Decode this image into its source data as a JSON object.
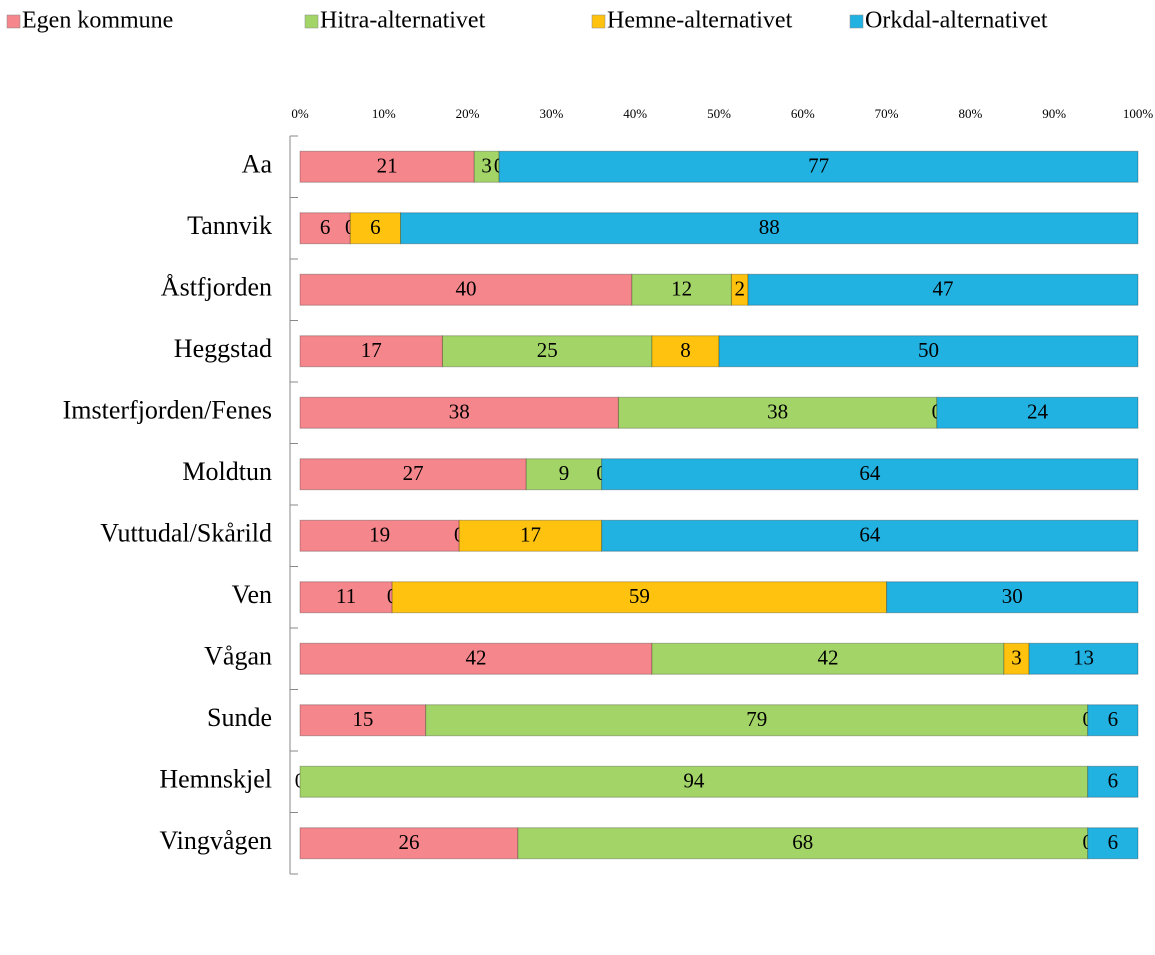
{
  "chart_data": {
    "type": "stacked-bar-100",
    "orientation": "horizontal",
    "categories": [
      "Aa",
      "Tannvik",
      "Åstfjorden",
      "Heggstad",
      "Imsterfjorden/Fenes",
      "Moldtun",
      "Vuttudal/Skårild",
      "Ven",
      "Vågan",
      "Sunde",
      "Hemnskjel",
      "Vingvågen"
    ],
    "series": [
      {
        "name": "Egen kommune",
        "color": "#f4868c",
        "values": [
          21,
          6,
          40,
          17,
          38,
          27,
          19,
          11,
          42,
          15,
          0,
          26
        ]
      },
      {
        "name": "Hitra-alternativet",
        "color": "#a2d468",
        "values": [
          3,
          0,
          12,
          25,
          38,
          9,
          0,
          0,
          42,
          79,
          94,
          68
        ]
      },
      {
        "name": "Hemne-alternativet",
        "color": "#ffc30f",
        "values": [
          0,
          6,
          2,
          8,
          0,
          0,
          17,
          59,
          3,
          0,
          null,
          0
        ]
      },
      {
        "name": "Orkdal-alternativet",
        "color": "#22b2e2",
        "values": [
          77,
          88,
          47,
          50,
          24,
          64,
          64,
          30,
          13,
          6,
          6,
          6
        ]
      }
    ],
    "xlim": [
      0,
      100
    ],
    "xticks": [
      {
        "value": 0,
        "label": "0%"
      },
      {
        "value": 10,
        "label": "10%"
      },
      {
        "value": 20,
        "label": "20%"
      },
      {
        "value": 30,
        "label": "30%"
      },
      {
        "value": 40,
        "label": "40%"
      },
      {
        "value": 50,
        "label": "50%"
      },
      {
        "value": 60,
        "label": "60%"
      },
      {
        "value": 70,
        "label": "70%"
      },
      {
        "value": 80,
        "label": "80%"
      },
      {
        "value": 90,
        "label": "90%"
      },
      {
        "value": 100,
        "label": "100%"
      }
    ],
    "legend": "top"
  }
}
